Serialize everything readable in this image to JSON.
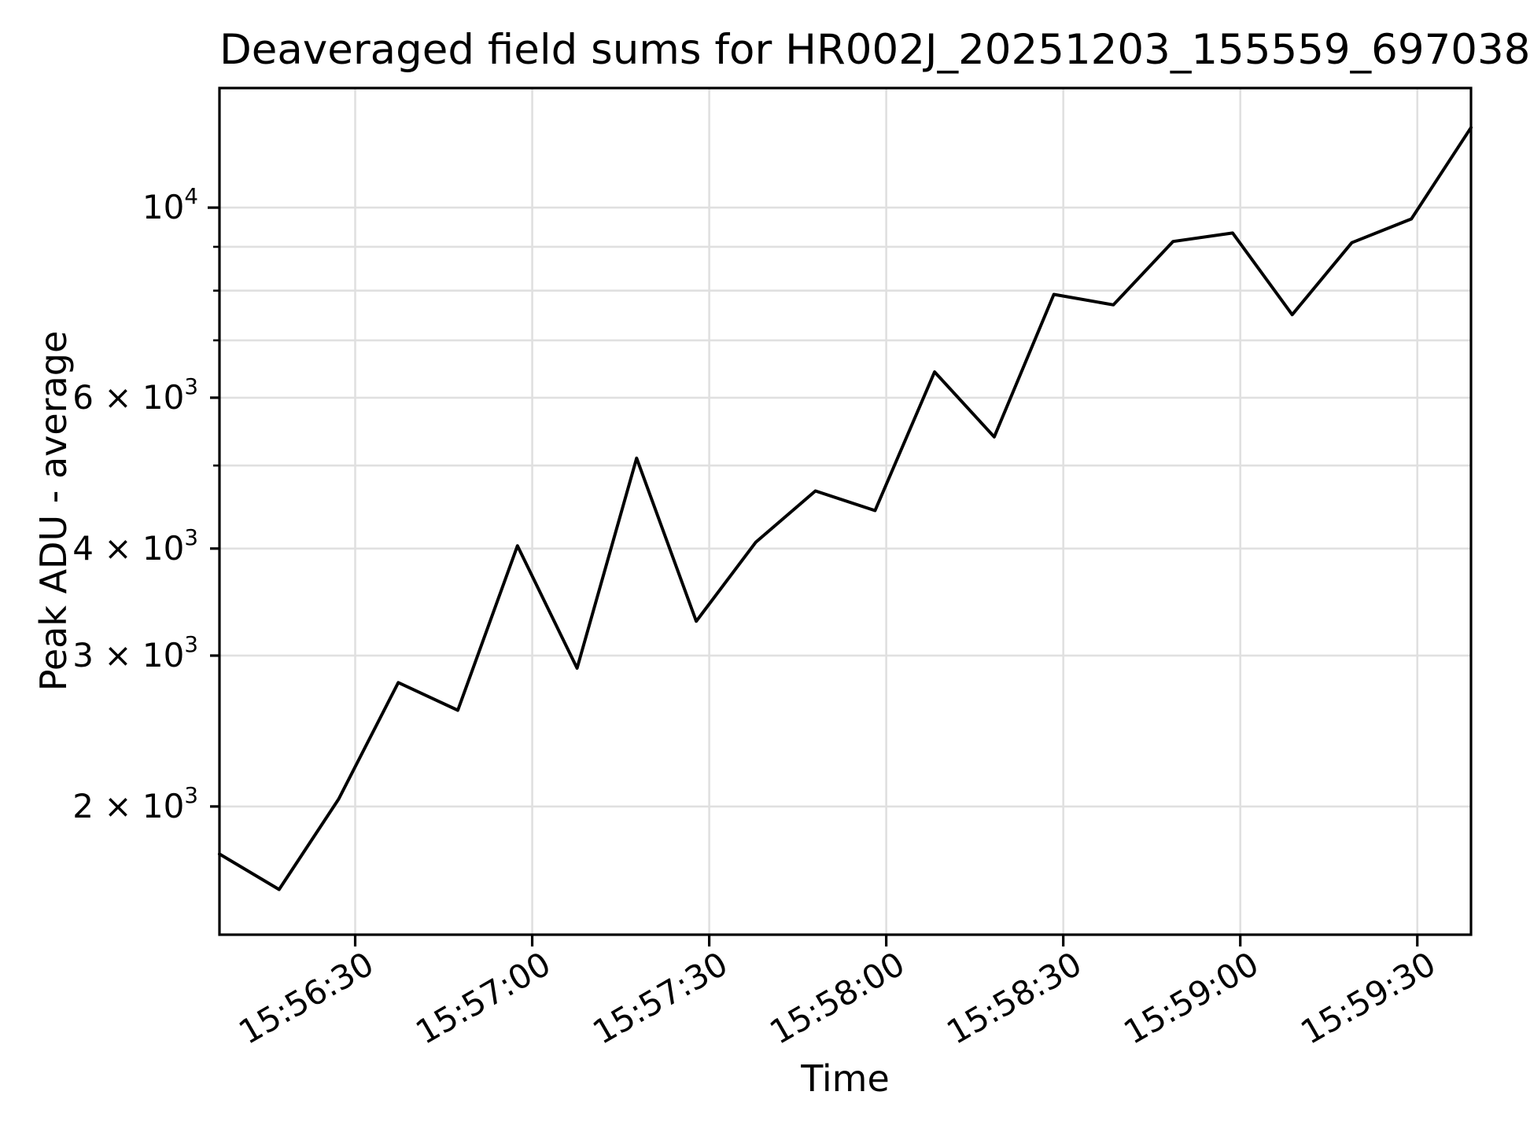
{
  "figure": {
    "title": "Deaveraged field sums for HR002J_20251203_155559_697038",
    "x_label": "Time",
    "y_label": "Peak ADU - average"
  },
  "chart_data": {
    "type": "line",
    "title": "Deaveraged field sums for HR002J_20251203_155559_697038",
    "xlabel": "Time",
    "ylabel": "Peak ADU - average",
    "y_scale": "log",
    "grid": true,
    "legend": "none",
    "line_color": "#000000",
    "grid_color": "#e0e0e0",
    "background_color": "#ffffff",
    "x_start_time": "15:56:07",
    "x_interval_seconds": 10.1,
    "xlim_seconds": [
      0,
      212.1
    ],
    "ylim": [
      1417,
      13790
    ],
    "points": [
      {
        "t": 0.0,
        "value": 1760
      },
      {
        "t": 10.1,
        "value": 1600
      },
      {
        "t": 20.2,
        "value": 2040
      },
      {
        "t": 30.3,
        "value": 2790
      },
      {
        "t": 40.4,
        "value": 2590
      },
      {
        "t": 50.5,
        "value": 4030
      },
      {
        "t": 60.6,
        "value": 2900
      },
      {
        "t": 70.7,
        "value": 5100
      },
      {
        "t": 80.8,
        "value": 3290
      },
      {
        "t": 90.9,
        "value": 4070
      },
      {
        "t": 101.0,
        "value": 4670
      },
      {
        "t": 111.1,
        "value": 4430
      },
      {
        "t": 121.2,
        "value": 6430
      },
      {
        "t": 131.3,
        "value": 5400
      },
      {
        "t": 141.4,
        "value": 7920
      },
      {
        "t": 151.5,
        "value": 7700
      },
      {
        "t": 161.6,
        "value": 9130
      },
      {
        "t": 171.7,
        "value": 9340
      },
      {
        "t": 181.8,
        "value": 7500
      },
      {
        "t": 191.9,
        "value": 9100
      },
      {
        "t": 202.0,
        "value": 9700
      },
      {
        "t": 212.1,
        "value": 12400
      }
    ],
    "x_ticks": [
      {
        "label": "15:56:30",
        "t": 23
      },
      {
        "label": "15:57:00",
        "t": 53
      },
      {
        "label": "15:57:30",
        "t": 83
      },
      {
        "label": "15:58:00",
        "t": 113
      },
      {
        "label": "15:58:30",
        "t": 143
      },
      {
        "label": "15:59:00",
        "t": 173
      },
      {
        "label": "15:59:30",
        "t": 203
      }
    ],
    "y_ticks": [
      {
        "value": 2000,
        "mantissa": 2,
        "exponent": 3,
        "labeled": true
      },
      {
        "value": 3000,
        "mantissa": 3,
        "exponent": 3,
        "labeled": true
      },
      {
        "value": 4000,
        "mantissa": 4,
        "exponent": 3,
        "labeled": true
      },
      {
        "value": 5000,
        "mantissa": 5,
        "exponent": 3,
        "labeled": false
      },
      {
        "value": 6000,
        "mantissa": 6,
        "exponent": 3,
        "labeled": true
      },
      {
        "value": 7000,
        "mantissa": 7,
        "exponent": 3,
        "labeled": false
      },
      {
        "value": 8000,
        "mantissa": 8,
        "exponent": 3,
        "labeled": false
      },
      {
        "value": 9000,
        "mantissa": 9,
        "exponent": 3,
        "labeled": false
      },
      {
        "value": 10000,
        "mantissa": 1,
        "exponent": 4,
        "labeled": true
      }
    ]
  }
}
